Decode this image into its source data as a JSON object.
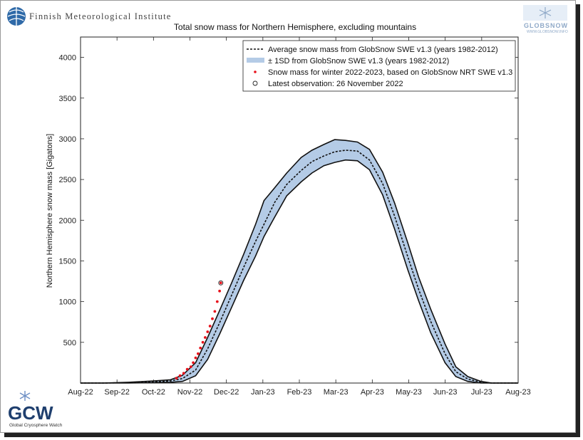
{
  "header": {
    "institute_name": "Finnish Meteorological Institute",
    "globsnow_text": "GLOBSNOW",
    "globsnow_url": "WWW.GLOBSNOW.INFO"
  },
  "footer": {
    "gcw_text": "GCW",
    "gcw_sub": "Global Cryosphere Watch"
  },
  "colors": {
    "band_fill": "#b4cbe6",
    "band_edge": "#111111",
    "observation": "#e8121c",
    "mean_line": "#111111"
  },
  "chart_data": {
    "type": "line",
    "title": "Total snow mass for Northern Hemisphere, excluding mountains",
    "ylabel": "Northern Hemisphere snow mass [Gigatons]",
    "xlabel": "",
    "xlim": [
      "2022-08-01",
      "2023-08-01"
    ],
    "ylim": [
      0,
      4250
    ],
    "grid": false,
    "legend_position": "top-right",
    "x_ticks": [
      "Aug-22",
      "Sep-22",
      "Oct-22",
      "Nov-22",
      "Dec-22",
      "Jan-23",
      "Feb-23",
      "Mar-23",
      "Apr-23",
      "May-23",
      "Jun-23",
      "Jul-23",
      "Aug-23"
    ],
    "y_ticks": [
      500,
      1000,
      1500,
      2000,
      2500,
      3000,
      3500,
      4000
    ],
    "legend": [
      "Average snow mass from GlobSnow SWE v1.3 (years 1982-2012)",
      "± 1SD from GlobSnow SWE v1.3 (years 1982-2012)",
      "Snow mass for winter 2022-2023, based on GlobSnow NRT SWE v1.3",
      "Latest observation: 26 November 2022"
    ],
    "series": [
      {
        "style": "dashed-line",
        "x": [
          "2022-08-01",
          "2022-08-20",
          "2022-09-10",
          "2022-10-01",
          "2022-10-15",
          "2022-10-25",
          "2022-11-05",
          "2022-11-15",
          "2022-11-25",
          "2022-12-05",
          "2022-12-15",
          "2022-12-25",
          "2023-01-01",
          "2023-01-10",
          "2023-01-20",
          "2023-02-01",
          "2023-02-10",
          "2023-02-20",
          "2023-03-01",
          "2023-03-10",
          "2023-03-20",
          "2023-03-30",
          "2023-04-10",
          "2023-04-20",
          "2023-05-01",
          "2023-05-10",
          "2023-05-20",
          "2023-06-01",
          "2023-06-10",
          "2023-06-20",
          "2023-07-01",
          "2023-07-10",
          "2023-08-01"
        ],
        "y": [
          0,
          0,
          5,
          15,
          25,
          55,
          160,
          420,
          740,
          1080,
          1420,
          1740,
          1950,
          2220,
          2440,
          2610,
          2720,
          2790,
          2840,
          2860,
          2850,
          2740,
          2450,
          2050,
          1550,
          1150,
          760,
          360,
          140,
          50,
          10,
          0,
          0
        ]
      },
      {
        "style": "band-upper",
        "x": [
          "2022-08-01",
          "2022-08-20",
          "2022-09-10",
          "2022-10-01",
          "2022-10-15",
          "2022-10-25",
          "2022-11-05",
          "2022-11-15",
          "2022-11-25",
          "2022-12-05",
          "2022-12-15",
          "2022-12-25",
          "2023-01-01",
          "2023-01-10",
          "2023-01-20",
          "2023-02-01",
          "2023-02-10",
          "2023-02-20",
          "2023-03-01",
          "2023-03-10",
          "2023-03-20",
          "2023-03-30",
          "2023-04-10",
          "2023-04-20",
          "2023-05-01",
          "2023-05-10",
          "2023-05-20",
          "2023-06-01",
          "2023-06-10",
          "2023-06-20",
          "2023-07-01",
          "2023-07-10",
          "2023-08-01"
        ],
        "y": [
          0,
          0,
          10,
          25,
          40,
          95,
          250,
          560,
          890,
          1230,
          1580,
          1950,
          2240,
          2400,
          2580,
          2770,
          2860,
          2930,
          2990,
          2980,
          2960,
          2870,
          2590,
          2210,
          1720,
          1300,
          910,
          480,
          200,
          80,
          20,
          0,
          0
        ]
      },
      {
        "style": "band-lower",
        "x": [
          "2022-08-01",
          "2022-08-20",
          "2022-09-10",
          "2022-10-01",
          "2022-10-15",
          "2022-10-25",
          "2022-11-05",
          "2022-11-15",
          "2022-11-25",
          "2022-12-05",
          "2022-12-15",
          "2022-12-25",
          "2023-01-01",
          "2023-01-10",
          "2023-01-20",
          "2023-02-01",
          "2023-02-10",
          "2023-02-20",
          "2023-03-01",
          "2023-03-10",
          "2023-03-20",
          "2023-03-30",
          "2023-04-10",
          "2023-04-20",
          "2023-05-01",
          "2023-05-10",
          "2023-05-20",
          "2023-06-01",
          "2023-06-10",
          "2023-06-20",
          "2023-07-01",
          "2023-07-10",
          "2023-08-01"
        ],
        "y": [
          0,
          0,
          0,
          5,
          10,
          20,
          90,
          290,
          600,
          930,
          1260,
          1560,
          1800,
          2040,
          2300,
          2470,
          2580,
          2670,
          2710,
          2740,
          2730,
          2620,
          2310,
          1890,
          1390,
          1010,
          620,
          250,
          80,
          20,
          0,
          0,
          0
        ]
      },
      {
        "style": "scatter",
        "x": [
          "2022-10-20",
          "2022-10-23",
          "2022-10-26",
          "2022-10-29",
          "2022-11-01",
          "2022-11-03",
          "2022-11-05",
          "2022-11-07",
          "2022-11-09",
          "2022-11-11",
          "2022-11-13",
          "2022-11-15",
          "2022-11-17",
          "2022-11-19",
          "2022-11-21",
          "2022-11-23",
          "2022-11-25",
          "2022-11-26"
        ],
        "y": [
          60,
          90,
          120,
          170,
          200,
          250,
          310,
          360,
          430,
          500,
          560,
          630,
          700,
          790,
          880,
          1000,
          1130,
          1230
        ]
      },
      {
        "style": "latest",
        "x": [
          "2022-11-26"
        ],
        "y": [
          1230
        ]
      }
    ]
  }
}
